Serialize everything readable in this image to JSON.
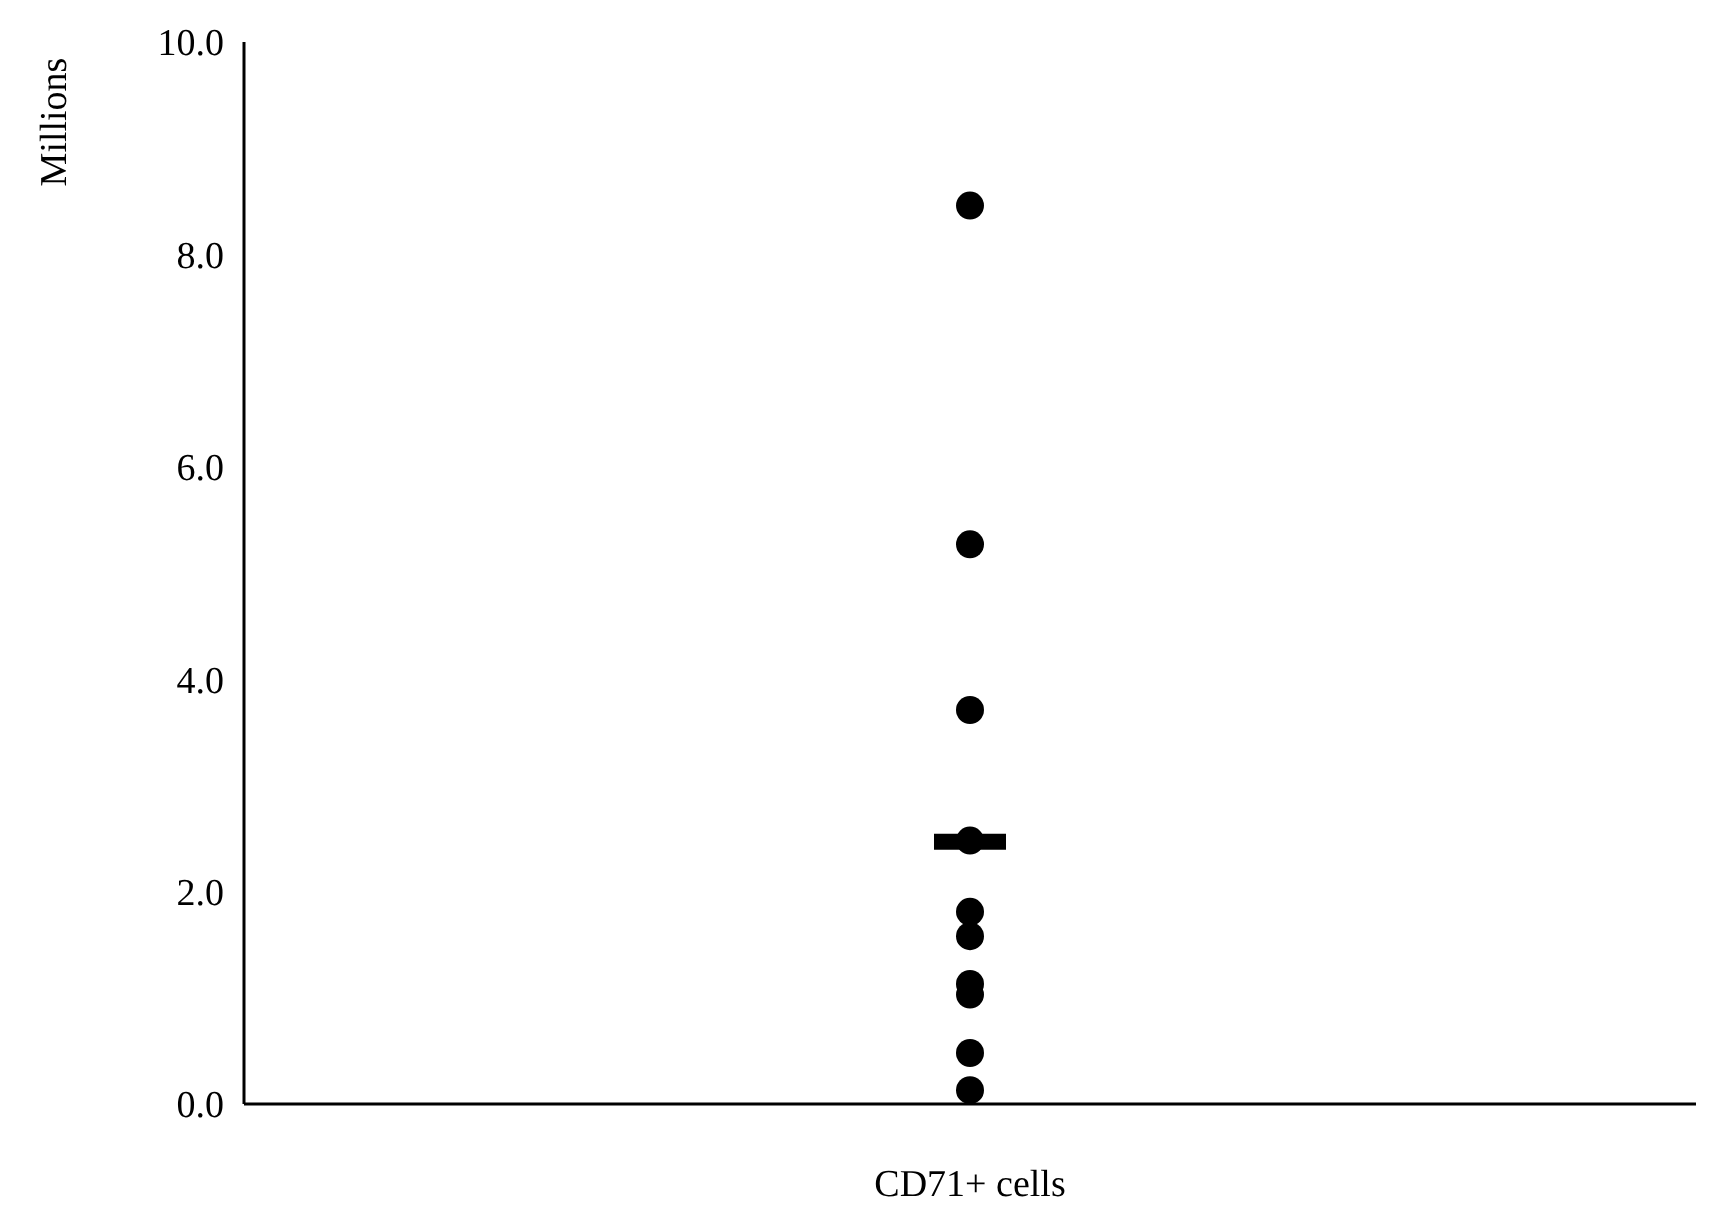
{
  "chart_data": {
    "type": "scatter",
    "ylabel": "Millions",
    "categories": [
      "CD71+ cells"
    ],
    "ylim": [
      0,
      10
    ],
    "yticks": [
      {
        "value": 0,
        "label": "0.0"
      },
      {
        "value": 2,
        "label": "2.0"
      },
      {
        "value": 4,
        "label": "4.0"
      },
      {
        "value": 6,
        "label": "6.0"
      },
      {
        "value": 8,
        "label": "8.0"
      },
      {
        "value": 10,
        "label": "10.0"
      }
    ],
    "grid": false,
    "marker": "circle",
    "series": [
      {
        "type": "box",
        "color": "#000000",
        "boxes": [
          {
            "low": 2.47,
            "q1": 2.47,
            "median": 2.47,
            "q3": 2.47,
            "high": 2.47
          }
        ]
      },
      {
        "color": "#000000",
        "x": [
          "CD71+ cells",
          "CD71+ cells",
          "CD71+ cells",
          "CD71+ cells",
          "CD71+ cells",
          "CD71+ cells",
          "CD71+ cells",
          "CD71+ cells",
          "CD71+ cells",
          "CD71+ cells"
        ],
        "values": [
          8.46,
          5.27,
          3.71,
          2.48,
          1.81,
          1.58,
          1.13,
          1.03,
          0.48,
          0.13
        ]
      }
    ]
  }
}
